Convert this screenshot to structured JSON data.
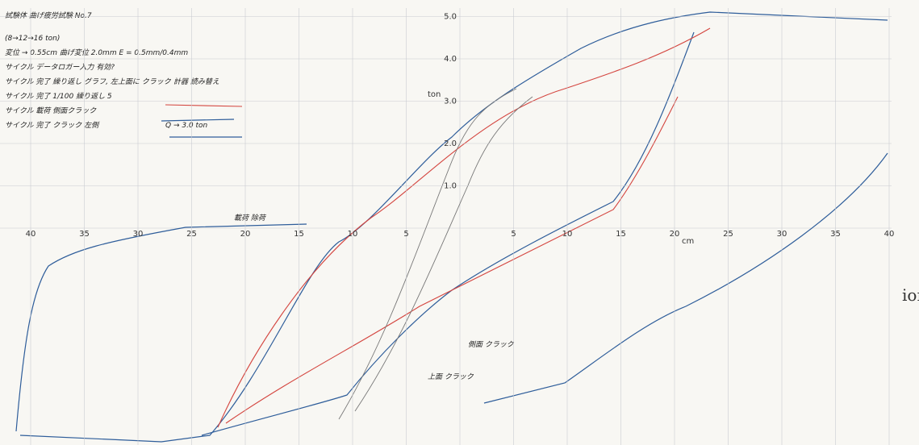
{
  "header": {
    "title": "試験体 曲げ疲労試験 No.7",
    "notes": [
      "(8→12→16 ton)",
      "変位 → 0.55cm  曲げ変位 2.0mm  E = 0.5mm/0.4mm",
      "サイクル データロガー入力 有効?",
      "サイクル 完了  繰り返し グラフ, 左上面に クラック",
      "サイクル 完了  1/100  繰り返し 5",
      "サイクル  載荷 側面クラック",
      "サイクル 完了  クラック 左側"
    ]
  },
  "axes": {
    "x_left": [
      "40",
      "35",
      "30",
      "25",
      "20",
      "15",
      "10",
      "5"
    ],
    "x_right": [
      "5",
      "10",
      "15",
      "20",
      "25",
      "30",
      "35",
      "40"
    ],
    "y_up": [
      "1.0",
      "2.0",
      "3.0",
      "4.0",
      "5.0"
    ],
    "y_unit": "ton",
    "x_unit": "cm"
  },
  "annotations": [
    "載荷 除荷",
    "計器 読み替え",
    "Q → 3.0 ton",
    "側面 クラック",
    "上面 クラック",
    "ion"
  ]
}
